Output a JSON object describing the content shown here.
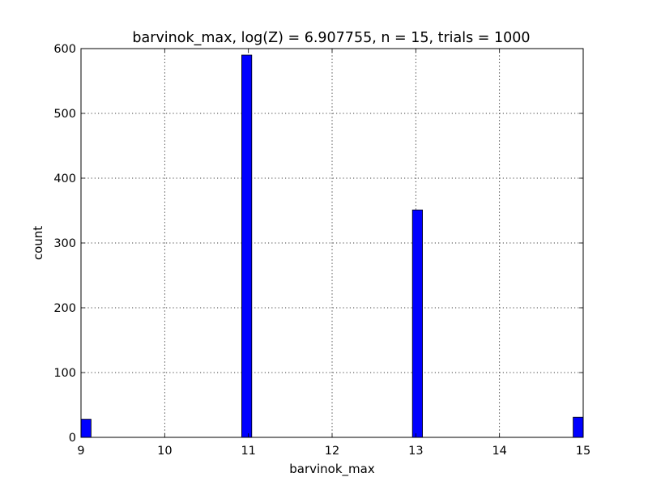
{
  "chart_data": {
    "type": "bar",
    "title": "barvinok_max, log(Z) = 6.907755, n = 15, trials = 1000",
    "xlabel": "barvinok_max",
    "ylabel": "count",
    "xlim": [
      9,
      15
    ],
    "ylim": [
      0,
      600
    ],
    "xticks": [
      "9",
      "10",
      "11",
      "12",
      "13",
      "14",
      "15"
    ],
    "yticks": [
      "0",
      "100",
      "200",
      "300",
      "400",
      "500",
      "600"
    ],
    "grid": true,
    "bar_color": "#0000ff",
    "edge_color": "#000000",
    "bars": [
      {
        "x_start": 9.0,
        "x_end": 9.12,
        "value": 28
      },
      {
        "x_start": 10.92,
        "x_end": 11.04,
        "value": 590
      },
      {
        "x_start": 12.96,
        "x_end": 13.08,
        "value": 351
      },
      {
        "x_start": 14.88,
        "x_end": 15.0,
        "value": 31
      }
    ]
  }
}
